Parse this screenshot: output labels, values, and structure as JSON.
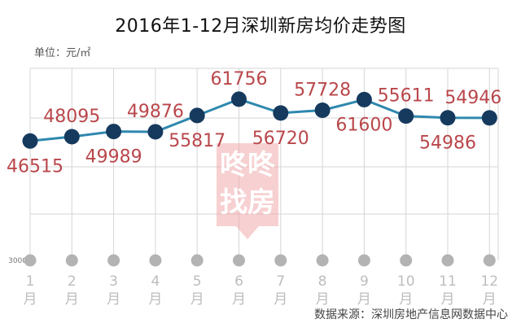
{
  "chart_data": {
    "type": "line",
    "title": "2016年1-12月深圳新房均价走势图",
    "unit_label": "单位：元/㎡",
    "source": "数据来源：深圳房地产信息网数据中心",
    "watermark_text": [
      "咚咚",
      "找房"
    ],
    "baseline_label": "3000",
    "categories": [
      [
        "1",
        "月"
      ],
      [
        "2",
        "月"
      ],
      [
        "3",
        "月"
      ],
      [
        "4",
        "月"
      ],
      [
        "5",
        "月"
      ],
      [
        "6",
        "月"
      ],
      [
        "7",
        "月"
      ],
      [
        "8",
        "月"
      ],
      [
        "9",
        "月"
      ],
      [
        "10",
        "月"
      ],
      [
        "11",
        "月"
      ],
      [
        "12",
        "月"
      ]
    ],
    "values": [
      46515,
      48095,
      49989,
      49876,
      55817,
      61756,
      56720,
      57728,
      61600,
      55611,
      54986,
      54946
    ],
    "label_positions": [
      "below",
      "above",
      "below",
      "above",
      "below",
      "above",
      "below",
      "above",
      "below",
      "above",
      "below",
      "above"
    ],
    "ylim": [
      3000,
      73000
    ],
    "grid": true,
    "colors": {
      "line": "#2f88ae",
      "marker": "#163a5e",
      "label": "#b9474b",
      "grid": "#d5d5d5",
      "baseline_dot": "#b3b3b3",
      "month_label": "#bdbdbd",
      "watermark": "#f1aaab"
    }
  }
}
